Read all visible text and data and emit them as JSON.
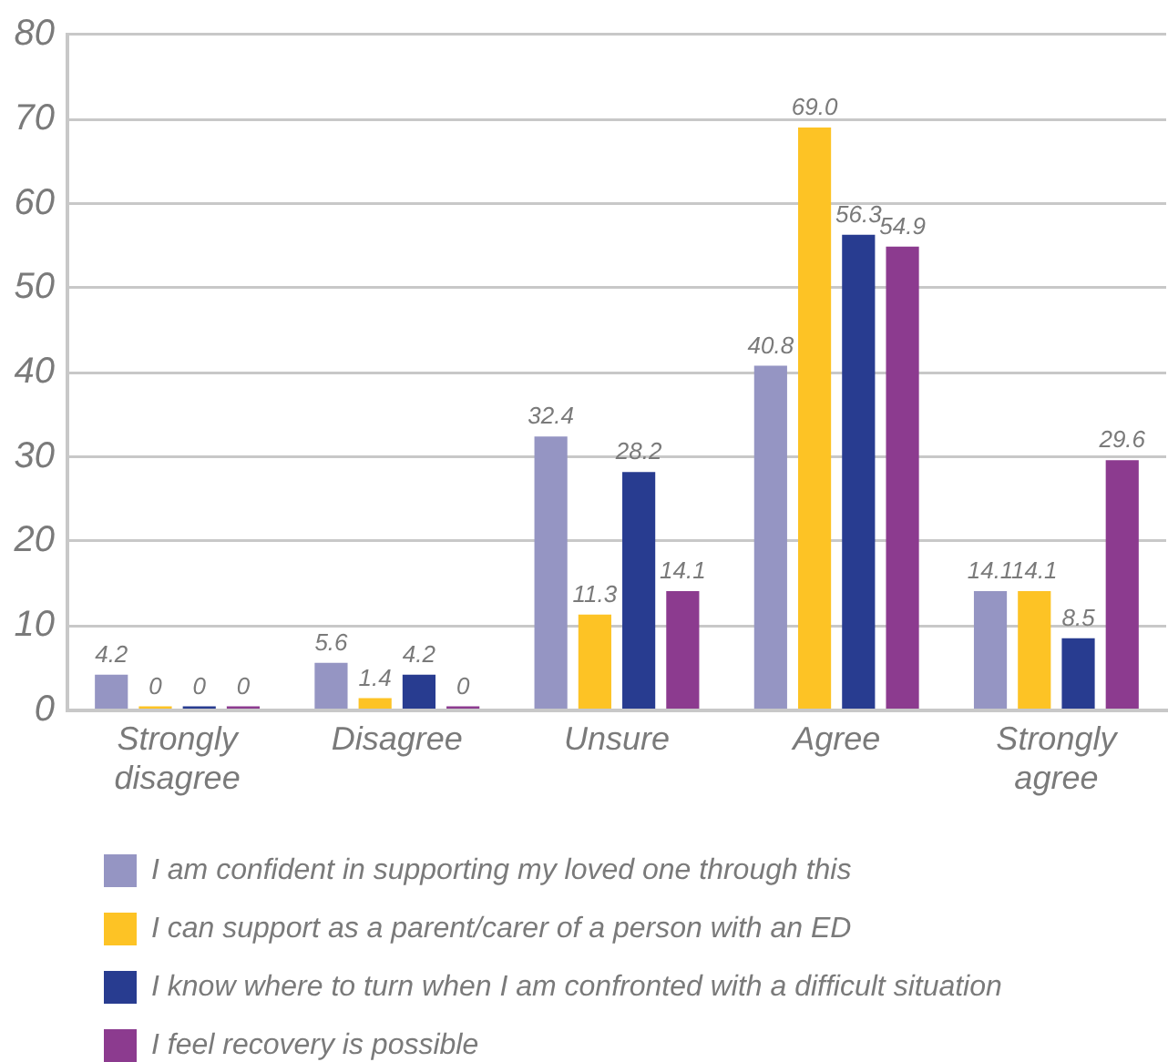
{
  "chart_data": {
    "type": "bar",
    "categories": [
      "Strongly disagree",
      "Disagree",
      "Unsure",
      "Agree",
      "Strongly agree"
    ],
    "series": [
      {
        "name": "I am confident in supporting my loved one through this",
        "color": "#9595c3",
        "values": [
          4.2,
          5.6,
          32.4,
          40.8,
          14.1
        ],
        "value_labels": [
          "4.2",
          "5.6",
          "32.4",
          "40.8",
          "14.1"
        ]
      },
      {
        "name": "I can support as a parent/carer of a person with an ED",
        "color": "#fdc325",
        "values": [
          0,
          1.4,
          11.3,
          69.0,
          14.1
        ],
        "value_labels": [
          "0",
          "1.4",
          "11.3",
          "69.0",
          "14.1"
        ]
      },
      {
        "name": "I know where to turn when I am confronted with a difficult situation",
        "color": "#283c90",
        "values": [
          0,
          4.2,
          28.2,
          56.3,
          8.5
        ],
        "value_labels": [
          "0",
          "4.2",
          "28.2",
          "56.3",
          "8.5"
        ]
      },
      {
        "name": "I feel recovery is possible",
        "color": "#8c3b8f",
        "values": [
          0,
          0,
          14.1,
          54.9,
          29.6
        ],
        "value_labels": [
          "0",
          "0",
          "14.1",
          "54.9",
          "29.6"
        ]
      }
    ],
    "ylim": [
      0,
      80
    ],
    "yticks": [
      0,
      10,
      20,
      30,
      40,
      50,
      60,
      70,
      80
    ],
    "grid": "y",
    "legend": "bottom"
  }
}
